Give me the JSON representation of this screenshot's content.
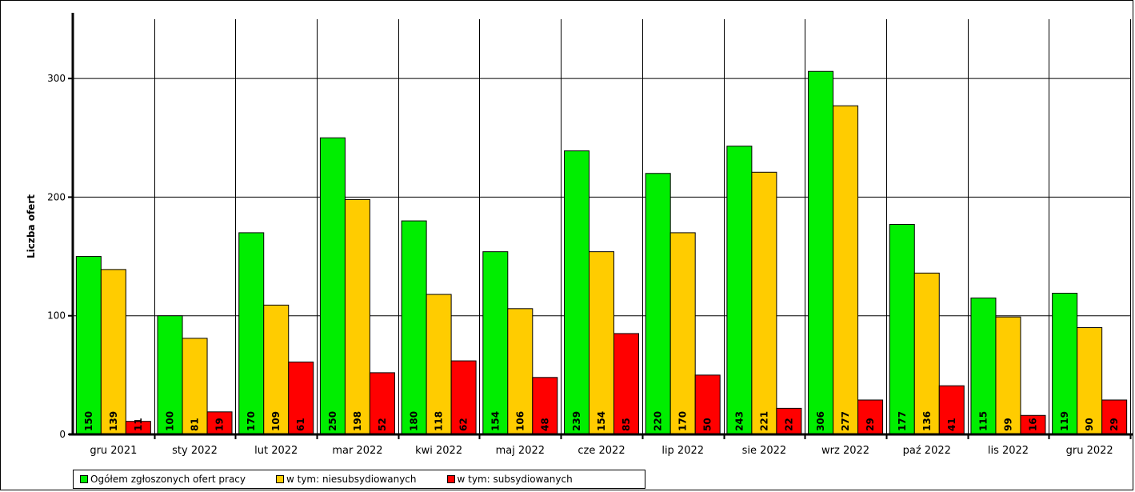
{
  "chart_data": {
    "type": "bar",
    "ylabel": "Liczba ofert",
    "xlabel": "",
    "ylim": [
      0,
      350
    ],
    "yticks": [
      0,
      100,
      200,
      300
    ],
    "grid": true,
    "legend_position": "bottom-left",
    "categories": [
      "gru 2021",
      "sty 2022",
      "lut 2022",
      "mar 2022",
      "kwi 2022",
      "maj 2022",
      "cze 2022",
      "lip 2022",
      "sie 2022",
      "wrz 2022",
      "paź 2022",
      "lis 2022",
      "gru 2022"
    ],
    "series": [
      {
        "name": "Ogółem zgłoszonych ofert pracy",
        "color": "#00ee00",
        "values": [
          150,
          100,
          170,
          250,
          180,
          154,
          239,
          220,
          243,
          306,
          177,
          115,
          119
        ]
      },
      {
        "name": "w tym: niesubsydiowanych",
        "color": "#ffcc00",
        "values": [
          139,
          81,
          109,
          198,
          118,
          106,
          154,
          170,
          221,
          277,
          136,
          99,
          90
        ]
      },
      {
        "name": "w tym: subsydiowanych",
        "color": "#ff0000",
        "values": [
          11,
          19,
          61,
          52,
          62,
          48,
          85,
          50,
          22,
          29,
          41,
          16,
          29
        ]
      }
    ]
  }
}
